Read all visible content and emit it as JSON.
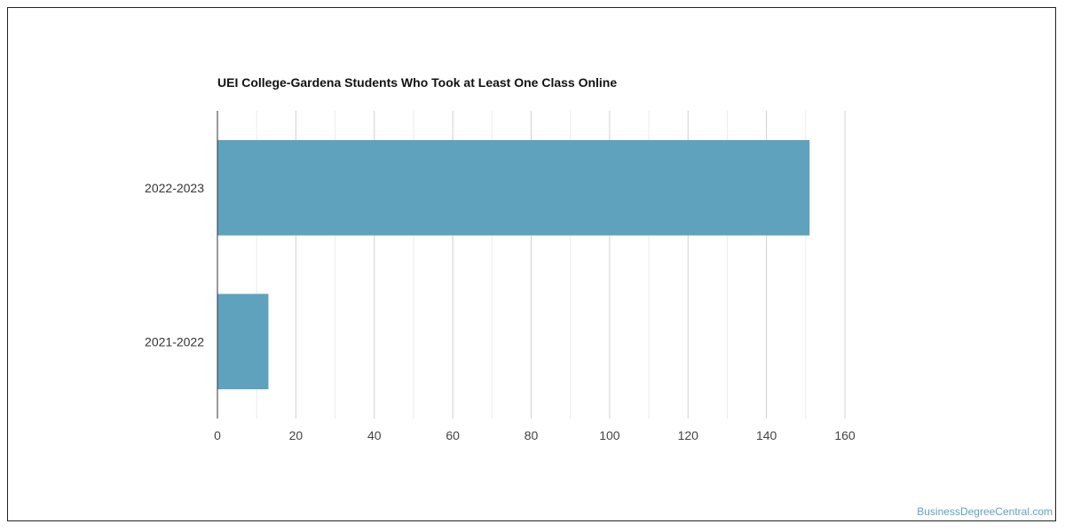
{
  "chart_data": {
    "type": "bar",
    "orientation": "horizontal",
    "title": "UEI College-Gardena Students Who Took at Least One Class Online",
    "categories": [
      "2022-2023",
      "2021-2022"
    ],
    "values": [
      151,
      13
    ],
    "xlim": [
      0,
      160
    ],
    "x_ticks": [
      0,
      20,
      40,
      60,
      80,
      100,
      120,
      140,
      160
    ],
    "grid": true,
    "bar_color": "#5ea2be"
  },
  "credit": "BusinessDegreeCentral.com",
  "colors": {
    "bar": "#5ea2be",
    "major_grid": "#d0d0d0",
    "minor_grid": "#ececec",
    "axis": "#333333",
    "credit": "#5ea2be"
  }
}
